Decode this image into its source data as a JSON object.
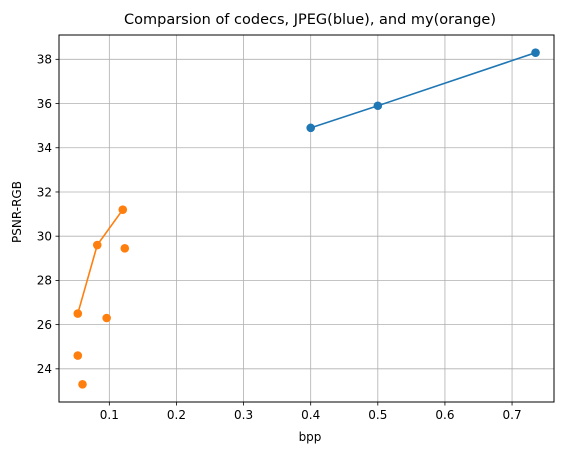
{
  "chart_data": {
    "type": "scatter",
    "title": "Comparsion of codecs, JPEG(blue), and my(orange)",
    "xlabel": "bpp",
    "ylabel": "PSNR-RGB",
    "xlim": [
      0.025,
      0.7625
    ],
    "ylim": [
      22.5,
      39.1
    ],
    "xticks": [
      0.1,
      0.2,
      0.3,
      0.4,
      0.5,
      0.6,
      0.7
    ],
    "yticks": [
      24,
      26,
      28,
      30,
      32,
      34,
      36,
      38
    ],
    "xtick_labels": [
      "0.1",
      "0.2",
      "0.3",
      "0.4",
      "0.5",
      "0.6",
      "0.7"
    ],
    "ytick_labels": [
      "24",
      "26",
      "28",
      "30",
      "32",
      "34",
      "36",
      "38"
    ],
    "grid": true,
    "series": [
      {
        "color": "#1f77b4",
        "line": [
          [
            0.4,
            34.9
          ],
          [
            0.5,
            35.9
          ],
          [
            0.735,
            38.3
          ]
        ],
        "points": [
          [
            0.4,
            34.9
          ],
          [
            0.5,
            35.9
          ],
          [
            0.735,
            38.3
          ]
        ]
      },
      {
        "color": "#ff7f0e",
        "line": [
          [
            0.053,
            26.5
          ],
          [
            0.082,
            29.6
          ],
          [
            0.12,
            31.2
          ]
        ],
        "points": [
          [
            0.053,
            26.5
          ],
          [
            0.082,
            29.6
          ],
          [
            0.12,
            31.2
          ],
          [
            0.123,
            29.45
          ],
          [
            0.096,
            26.3
          ],
          [
            0.053,
            24.6
          ],
          [
            0.06,
            23.3
          ]
        ]
      }
    ]
  }
}
